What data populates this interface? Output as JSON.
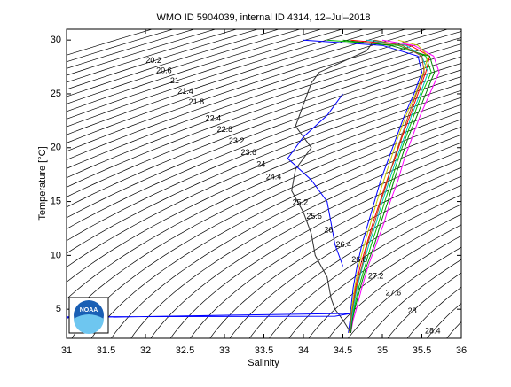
{
  "chart_data": {
    "type": "ts-diagram",
    "title": "WMO ID 5904039, internal ID 4314, 12–Jul–2018",
    "xlabel": "Salinity",
    "ylabel": "Temperature [°C]",
    "xlim": [
      31,
      36
    ],
    "ylim": [
      2.3,
      31
    ],
    "xticks": [
      31,
      31.5,
      32,
      32.5,
      33,
      33.5,
      34,
      34.5,
      35,
      35.5,
      36
    ],
    "yticks": [
      5,
      10,
      15,
      20,
      25,
      30
    ],
    "contour_color": "#000000",
    "contour_levels": [
      19.2,
      19.4,
      19.6,
      19.8,
      20,
      20.2,
      20.4,
      20.6,
      20.8,
      21,
      21.2,
      21.4,
      21.6,
      21.8,
      22,
      22.2,
      22.4,
      22.6,
      22.8,
      23,
      23.2,
      23.4,
      23.6,
      23.8,
      24,
      24.2,
      24.4,
      24.6,
      24.8,
      25,
      25.2,
      25.4,
      25.6,
      25.8,
      26,
      26.2,
      26.4,
      26.6,
      26.8,
      27,
      27.2,
      27.4,
      27.6,
      27.8,
      28,
      28.2,
      28.4,
      28.6
    ],
    "contour_labels": [
      20.2,
      20.6,
      21,
      21.4,
      21.8,
      22.4,
      22.8,
      23.2,
      23.6,
      24,
      24.4,
      25.2,
      25.6,
      26,
      26.4,
      26.8,
      27.2,
      27.6,
      28,
      28.4
    ],
    "logo_text": "NOAA",
    "series": [
      {
        "color": "#ff0000",
        "x": [
          34.58,
          34.6,
          34.62,
          34.66,
          34.72,
          34.8,
          34.88,
          34.97,
          35.06,
          35.16,
          35.25,
          35.35,
          35.45,
          35.55,
          35.6,
          35.35,
          34.6
        ],
        "values": [
          2.8,
          4,
          5,
          7,
          9,
          11,
          13,
          15,
          17,
          19,
          21,
          23,
          25,
          27,
          28.5,
          29.5,
          30
        ]
      },
      {
        "color": "#00c000",
        "x": [
          34.6,
          34.62,
          34.64,
          34.7,
          34.78,
          34.86,
          34.95,
          35.03,
          35.12,
          35.2,
          35.3,
          35.4,
          35.5,
          35.62,
          35.55,
          35.2,
          34.3
        ],
        "values": [
          2.8,
          4,
          5,
          7,
          9,
          11,
          13,
          15,
          17,
          19,
          21,
          23,
          25,
          27,
          28.5,
          29.5,
          30
        ]
      },
      {
        "color": "#0000ff",
        "x": [
          34.57,
          34.59,
          34.6,
          34.63,
          34.68,
          34.74,
          34.82,
          34.9,
          34.98,
          35.08,
          35.18,
          35.28,
          35.4,
          35.5,
          35.45,
          35.0,
          34.0
        ],
        "values": [
          2.8,
          4,
          5,
          7,
          9,
          11,
          13,
          15,
          17,
          19,
          21,
          23,
          25,
          27,
          28.5,
          29.5,
          30
        ]
      },
      {
        "color": "#ff00ff",
        "x": [
          34.6,
          34.63,
          34.67,
          34.74,
          34.82,
          34.92,
          35.02,
          35.1,
          35.2,
          35.28,
          35.38,
          35.48,
          35.6,
          35.72,
          35.65,
          35.4,
          35.0
        ],
        "values": [
          2.8,
          4,
          5,
          7,
          9,
          11,
          13,
          15,
          17,
          19,
          21,
          23,
          25,
          27,
          28.5,
          29.5,
          30
        ]
      },
      {
        "color": "#00c0c0",
        "x": [
          34.59,
          34.61,
          34.63,
          34.68,
          34.75,
          34.83,
          34.92,
          35.0,
          35.09,
          35.18,
          35.28,
          35.37,
          35.48,
          35.58,
          35.5,
          35.3,
          34.8
        ],
        "values": [
          2.8,
          4,
          5,
          7,
          9,
          11,
          13,
          15,
          17,
          19,
          21,
          23,
          25,
          27,
          28.5,
          29.5,
          30
        ]
      },
      {
        "color": "#c8c800",
        "x": [
          34.58,
          34.6,
          34.61,
          34.65,
          34.7,
          34.77,
          34.85,
          34.93,
          35.02,
          35.11,
          35.2,
          35.3,
          35.42,
          35.52,
          35.58,
          35.45,
          35.2
        ],
        "values": [
          2.8,
          4,
          5,
          7,
          9,
          11,
          13,
          15,
          17,
          19,
          21,
          23,
          25,
          27,
          28.5,
          29.5,
          30
        ]
      },
      {
        "color": "#008000",
        "x": [
          34.6,
          34.62,
          34.65,
          34.72,
          34.8,
          34.9,
          34.98,
          35.07,
          35.15,
          35.24,
          35.33,
          35.44,
          35.55,
          35.66,
          35.6,
          35.1,
          34.5
        ],
        "values": [
          2.8,
          4,
          5,
          7,
          9,
          11,
          13,
          15,
          17,
          19,
          21,
          23,
          25,
          27,
          28.5,
          29.5,
          30
        ]
      },
      {
        "color": "#a05020",
        "x": [
          34.59,
          34.6,
          34.62,
          34.67,
          34.74,
          34.81,
          34.9,
          34.98,
          35.07,
          35.15,
          35.24,
          35.33,
          35.43,
          35.53,
          35.5,
          35.25,
          34.9
        ],
        "values": [
          2.8,
          4,
          5,
          7,
          9,
          11,
          13,
          15,
          17,
          19,
          21,
          23,
          25,
          27,
          28.5,
          29.5,
          30
        ]
      },
      {
        "color": "#303030",
        "x": [
          34.6,
          34.5,
          34.4,
          34.35,
          34.3,
          34.15,
          34.1,
          34.0,
          33.85,
          33.9,
          34.1,
          33.9,
          34.0,
          34.1,
          34.2,
          34.5,
          34.8,
          34.9
        ],
        "values": [
          2.8,
          4,
          5,
          6,
          8,
          10,
          12,
          14,
          16,
          18,
          20,
          22,
          24,
          26,
          27,
          28,
          29,
          30
        ]
      },
      {
        "color": "#0000ff",
        "x": [
          34.5,
          34.4,
          34.35,
          34.3,
          34.1,
          33.8,
          34.0,
          34.3,
          34.5
        ],
        "values": [
          9,
          11,
          13,
          15,
          17,
          19,
          21,
          23,
          25
        ]
      },
      {
        "color": "#0000ff",
        "x": [
          31,
          33.6,
          34.6,
          34.4,
          31
        ],
        "values": [
          4.2,
          4.5,
          4.6,
          4.35,
          4.3
        ]
      }
    ]
  }
}
